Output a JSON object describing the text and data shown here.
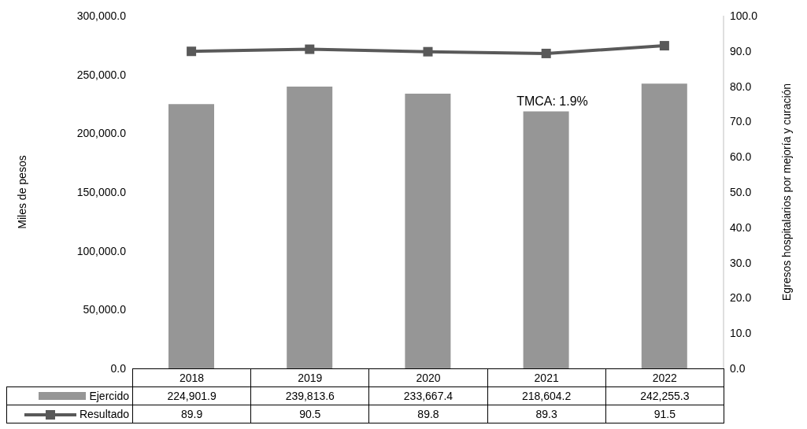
{
  "chart_data": {
    "type": "bar",
    "categories": [
      "2018",
      "2019",
      "2020",
      "2021",
      "2022"
    ],
    "series": [
      {
        "name": "Ejercido",
        "color": "#969696",
        "values": [
          224901.9,
          239813.6,
          233667.4,
          218604.2,
          242255.3
        ],
        "value_labels": [
          "224,901.9",
          "239,813.6",
          "233,667.4",
          "218,604.2",
          "242,255.3"
        ]
      },
      {
        "name": "Resultado",
        "type": "line",
        "axis": "y2",
        "color": "#595959",
        "values": [
          89.9,
          90.5,
          89.8,
          89.3,
          91.5
        ],
        "value_labels": [
          "89.9",
          "90.5",
          "89.8",
          "89.3",
          "91.5"
        ]
      }
    ],
    "ylabel": "Miles de pesos",
    "y2label": "Egresos hospitalarios por mejoría y curación",
    "ylim": [
      0,
      300000
    ],
    "yticks": [
      {
        "value": 0,
        "label": "0.0"
      },
      {
        "value": 50000,
        "label": "50,000.0"
      },
      {
        "value": 100000,
        "label": "100,000.0"
      },
      {
        "value": 150000,
        "label": "150,000.0"
      },
      {
        "value": 200000,
        "label": "200,000.0"
      },
      {
        "value": 250000,
        "label": "250,000.0"
      },
      {
        "value": 300000,
        "label": "300,000.0"
      }
    ],
    "y2lim": [
      0,
      100
    ],
    "y2ticks": [
      {
        "value": 0,
        "label": "0.0"
      },
      {
        "value": 10,
        "label": "10.0"
      },
      {
        "value": 20,
        "label": "20.0"
      },
      {
        "value": 30,
        "label": "30.0"
      },
      {
        "value": 40,
        "label": "40.0"
      },
      {
        "value": 50,
        "label": "50.0"
      },
      {
        "value": 60,
        "label": "60.0"
      },
      {
        "value": 70,
        "label": "70.0"
      },
      {
        "value": 80,
        "label": "80.0"
      },
      {
        "value": 90,
        "label": "90.0"
      },
      {
        "value": 100,
        "label": "100.0"
      }
    ],
    "annotations": [
      "TMCA: 1.9%"
    ],
    "legend": "bottom",
    "marker": "square",
    "line_style": "solid"
  }
}
